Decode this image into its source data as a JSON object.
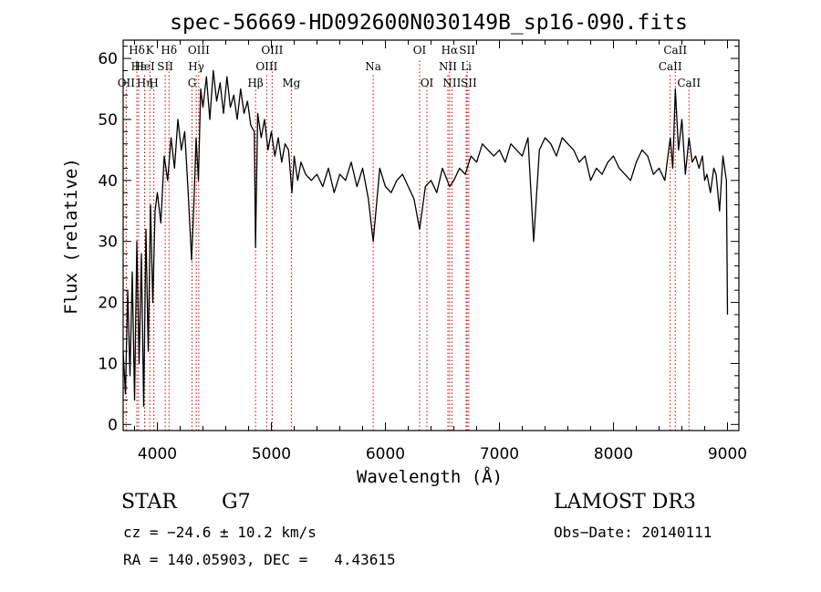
{
  "chart_data": {
    "type": "line",
    "title": "spec-56669-HD092600N030149B_sp16-090.fits",
    "xlabel": "Wavelength (Å)",
    "ylabel": "Flux (relative)",
    "xlim": [
      3700,
      9100
    ],
    "ylim": [
      -1,
      63
    ],
    "xticks": [
      4000,
      5000,
      6000,
      7000,
      8000,
      9000
    ],
    "yticks": [
      0,
      10,
      20,
      30,
      40,
      50,
      60
    ],
    "grid": false,
    "series": [
      {
        "color": "#000000",
        "x": [
          3700,
          3720,
          3740,
          3760,
          3780,
          3800,
          3820,
          3840,
          3860,
          3880,
          3900,
          3920,
          3940,
          3960,
          3980,
          4000,
          4030,
          4060,
          4090,
          4120,
          4150,
          4180,
          4210,
          4240,
          4270,
          4300,
          4320,
          4340,
          4360,
          4380,
          4400,
          4430,
          4460,
          4490,
          4520,
          4550,
          4580,
          4610,
          4640,
          4670,
          4700,
          4730,
          4760,
          4790,
          4820,
          4850,
          4861,
          4880,
          4910,
          4940,
          4970,
          5000,
          5030,
          5060,
          5090,
          5120,
          5150,
          5180,
          5200,
          5230,
          5260,
          5300,
          5350,
          5400,
          5450,
          5500,
          5550,
          5600,
          5650,
          5700,
          5750,
          5800,
          5850,
          5893,
          5950,
          6000,
          6050,
          6100,
          6150,
          6200,
          6250,
          6300,
          6350,
          6400,
          6450,
          6500,
          6563,
          6600,
          6650,
          6700,
          6750,
          6800,
          6850,
          6900,
          6950,
          7000,
          7050,
          7100,
          7150,
          7200,
          7250,
          7300,
          7350,
          7400,
          7450,
          7500,
          7550,
          7600,
          7650,
          7700,
          7750,
          7800,
          7850,
          7900,
          7950,
          8000,
          8050,
          8100,
          8150,
          8200,
          8250,
          8300,
          8350,
          8400,
          8450,
          8498,
          8520,
          8542,
          8570,
          8600,
          8630,
          8662,
          8690,
          8720,
          8750,
          8780,
          8800,
          8820,
          8850,
          8880,
          8900,
          8930,
          8960,
          8990,
          9000
        ],
        "y": [
          12,
          5,
          22,
          8,
          25,
          4,
          30,
          10,
          28,
          3,
          32,
          12,
          36,
          20,
          35,
          38,
          33,
          44,
          40,
          47,
          42,
          50,
          45,
          48,
          38,
          27,
          36,
          47,
          40,
          55,
          52,
          57,
          50,
          58,
          53,
          56,
          51,
          57,
          52,
          54,
          50,
          55,
          51,
          53,
          49,
          48,
          29,
          51,
          47,
          50,
          45,
          48,
          44,
          47,
          43,
          46,
          45,
          38,
          44,
          40,
          43,
          41,
          40,
          41,
          39,
          42,
          38,
          41,
          40,
          43,
          39,
          42,
          37,
          30,
          42,
          39,
          38,
          40,
          41,
          39,
          37,
          32,
          39,
          40,
          38,
          42,
          39,
          40,
          42,
          41,
          44,
          43,
          46,
          45,
          44,
          45,
          43,
          46,
          45,
          44,
          47,
          30,
          45,
          47,
          46,
          44,
          47,
          46,
          45,
          43,
          44,
          40,
          42,
          41,
          43,
          44,
          42,
          41,
          40,
          43,
          45,
          44,
          41,
          42,
          40,
          47,
          42,
          55,
          45,
          50,
          41,
          47,
          43,
          44,
          42,
          44,
          40,
          41,
          38,
          42,
          41,
          35,
          44,
          40,
          18
        ]
      }
    ],
    "line_markers": [
      {
        "label": "Hδ",
        "x": 3820,
        "tier": 1
      },
      {
        "label": "OII",
        "x": 3727,
        "tier": 3
      },
      {
        "label": "Hε",
        "x": 3835,
        "tier": 2
      },
      {
        "label": "K",
        "x": 3934,
        "tier": 1
      },
      {
        "label": "Hη",
        "x": 3889,
        "tier": 3
      },
      {
        "label": "HeI",
        "x": 3889,
        "tier": 2
      },
      {
        "label": "H",
        "x": 3969,
        "tier": 3
      },
      {
        "label": "SII",
        "x": 4069,
        "tier": 2
      },
      {
        "label": "Hδ",
        "x": 4102,
        "tier": 1
      },
      {
        "label": "OIII",
        "x": 4363,
        "tier": 1
      },
      {
        "label": "Hγ",
        "x": 4341,
        "tier": 2
      },
      {
        "label": "G",
        "x": 4304,
        "tier": 3
      },
      {
        "label": "Hβ",
        "x": 4861,
        "tier": 3
      },
      {
        "label": "OIII",
        "x": 5007,
        "tier": 1
      },
      {
        "label": "OIII",
        "x": 4959,
        "tier": 2
      },
      {
        "label": "Mg",
        "x": 5175,
        "tier": 3
      },
      {
        "label": "Na",
        "x": 5893,
        "tier": 2
      },
      {
        "label": "OI",
        "x": 6300,
        "tier": 1
      },
      {
        "label": "OI",
        "x": 6364,
        "tier": 3
      },
      {
        "label": "Hα",
        "x": 6563,
        "tier": 1
      },
      {
        "label": "NII",
        "x": 6548,
        "tier": 2
      },
      {
        "label": "NII",
        "x": 6583,
        "tier": 3
      },
      {
        "label": "SII",
        "x": 6717,
        "tier": 1
      },
      {
        "label": "Li",
        "x": 6708,
        "tier": 2
      },
      {
        "label": "SII",
        "x": 6731,
        "tier": 3
      },
      {
        "label": "CaII",
        "x": 8542,
        "tier": 1
      },
      {
        "label": "CaII",
        "x": 8498,
        "tier": 2
      },
      {
        "label": "CaII",
        "x": 8662,
        "tier": 3
      }
    ],
    "marker_color": "#cc0000"
  },
  "info": {
    "object_class": "STAR",
    "subclass": "G7",
    "survey": "LAMOST DR3",
    "cz": "cz = −24.6 ± 10.2 km/s",
    "obs_date": "Obs−Date: 20140111",
    "radec": "RA = 140.05903, DEC =   4.43615"
  }
}
